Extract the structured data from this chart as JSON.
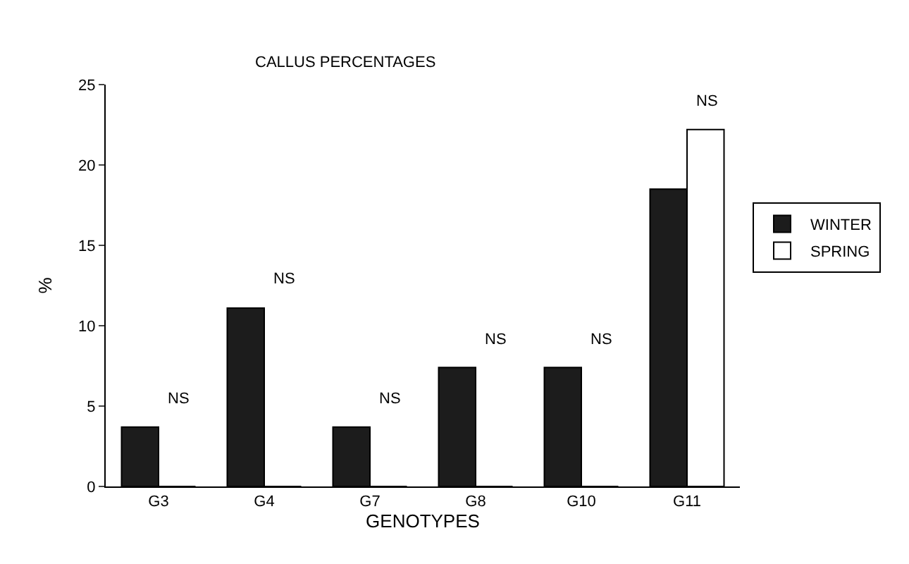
{
  "chart_data": {
    "type": "bar",
    "title": "CALLUS PERCENTAGES",
    "xlabel": "GENOTYPES",
    "ylabel": "%",
    "categories": [
      "G3",
      "G4",
      "G7",
      "G8",
      "G10",
      "G11"
    ],
    "series": [
      {
        "name": "WINTER",
        "color": "#1c1c1c",
        "values": [
          3.7,
          11.1,
          3.7,
          7.4,
          7.4,
          18.5
        ]
      },
      {
        "name": "SPRING",
        "color": "#ffffff",
        "values": [
          0,
          0,
          0,
          0,
          0,
          22.2
        ]
      }
    ],
    "ylim": [
      0,
      25
    ],
    "yticks": [
      0,
      5,
      10,
      15,
      20,
      25
    ],
    "legend": "right",
    "annotations": [
      "NS",
      "NS",
      "NS",
      "NS",
      "NS",
      "NS"
    ]
  }
}
